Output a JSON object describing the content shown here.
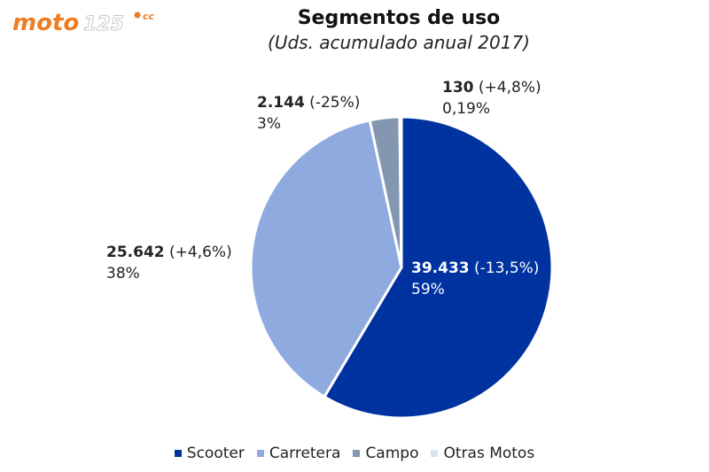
{
  "logo": {
    "text_main": "moto",
    "text_num": "125",
    "text_cc": "cc"
  },
  "chart_data": {
    "type": "pie",
    "title": "Segmentos de uso",
    "subtitle": "(Uds. acumulado anual 2017)",
    "legend_position": "bottom",
    "slices": [
      {
        "name": "Scooter",
        "value": 39433,
        "value_label": "39.433",
        "change": "(-13,5%)",
        "percent": "59%",
        "color": "#0033a0"
      },
      {
        "name": "Carretera",
        "value": 25642,
        "value_label": "25.642",
        "change": "(+4,6%)",
        "percent": "38%",
        "color": "#8eaadf"
      },
      {
        "name": "Campo",
        "value": 2144,
        "value_label": "2.144",
        "change": "(-25%)",
        "percent": "3%",
        "color": "#8497b0"
      },
      {
        "name": "Otras Motos",
        "value": 130,
        "value_label": "130",
        "change": "(+4,8%)",
        "percent": "0,19%",
        "color": "#d9e2f3"
      }
    ]
  }
}
